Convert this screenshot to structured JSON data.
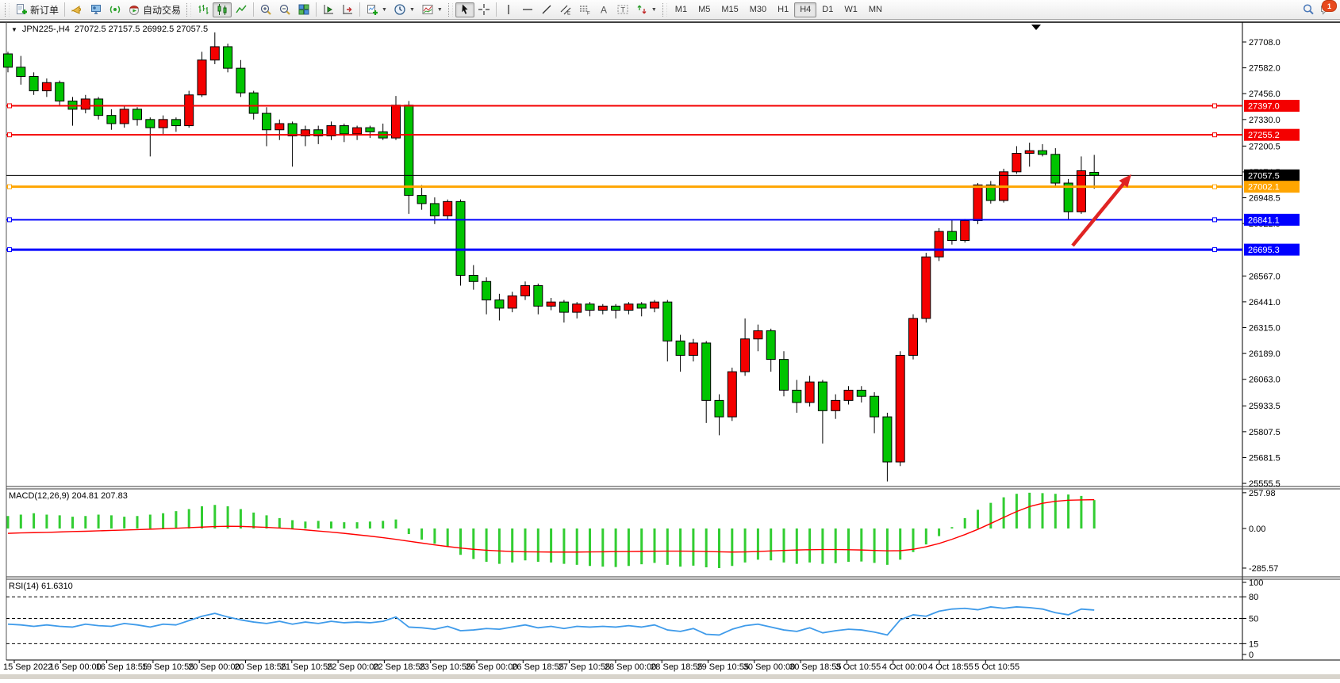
{
  "toolbar": {
    "new_order_label": "新订单",
    "autotrade_label": "自动交易",
    "timeframes": [
      "M1",
      "M5",
      "M15",
      "M30",
      "H1",
      "H4",
      "D1",
      "W1",
      "MN"
    ],
    "selected_timeframe": "H4",
    "notification_badge": "1"
  },
  "chart": {
    "symbol_label": "JPN225-,H4",
    "ohlc_label": "27072.5 27157.5 26992.5 27057.5",
    "price_ticks": [
      27708.0,
      27582.0,
      27456.0,
      27330.0,
      27200.5,
      27074.5,
      26948.5,
      26822.5,
      26567.0,
      26441.0,
      26315.0,
      26189.0,
      26063.0,
      25933.5,
      25807.5,
      25681.5,
      25555.5
    ],
    "hlines": [
      {
        "price": 27397.0,
        "label": "27397.0",
        "color": "#f40000",
        "width": 2
      },
      {
        "price": 27255.2,
        "label": "27255.2",
        "color": "#f40000",
        "width": 2
      },
      {
        "price": 27057.5,
        "label": "27057.5",
        "color": "#000000",
        "width": 1
      },
      {
        "price": 27002.1,
        "label": "27002.1",
        "color": "#ffa500",
        "width": 3
      },
      {
        "price": 26841.1,
        "label": "26841.1",
        "color": "#0000ff",
        "width": 2
      },
      {
        "price": 26695.3,
        "label": "26695.3",
        "color": "#0000ff",
        "width": 3
      }
    ],
    "time_labels": [
      "15 Sep 2022",
      "16 Sep 00:00",
      "16 Sep 18:55",
      "19 Sep 10:55",
      "20 Sep 00:00",
      "20 Sep 18:55",
      "21 Sep 10:55",
      "22 Sep 00:00",
      "22 Sep 18:55",
      "23 Sep 10:55",
      "26 Sep 00:00",
      "26 Sep 18:55",
      "27 Sep 10:55",
      "28 Sep 00:00",
      "28 Sep 18:55",
      "29 Sep 10:55",
      "30 Sep 00:00",
      "30 Sep 18:55",
      "3 Oct 10:55",
      "4 Oct 00:00",
      "4 Oct 18:55",
      "5 Oct 10:55"
    ]
  },
  "macd": {
    "name_label": "MACD(12,26,9)",
    "values_label": "204.81 207.83",
    "axis_ticks": [
      "257.98",
      "0.00",
      "-285.57"
    ]
  },
  "rsi": {
    "name_label": "RSI(14)",
    "value_label": "61.6310",
    "axis_ticks": [
      "100",
      "80",
      "50",
      "15",
      "0"
    ],
    "levels": [
      80,
      50,
      15
    ]
  },
  "chart_data": {
    "type": "candlestick",
    "title": "JPN225-,H4",
    "price_range": {
      "top": 27708.0,
      "bottom": 25555.5
    },
    "bull_color": "#f40000",
    "bear_color": "#00c400",
    "macd_bar_color": "#32cd32",
    "macd_signal_color": "#ff0000",
    "rsi_line_color": "#3f9bea",
    "arrow_color": "#e02423",
    "candles": [
      [
        27650,
        27660,
        27560,
        27585
      ],
      [
        27585,
        27640,
        27500,
        27540
      ],
      [
        27540,
        27560,
        27450,
        27470
      ],
      [
        27470,
        27530,
        27440,
        27510
      ],
      [
        27510,
        27520,
        27400,
        27420
      ],
      [
        27420,
        27440,
        27300,
        27380
      ],
      [
        27380,
        27450,
        27360,
        27430
      ],
      [
        27430,
        27440,
        27330,
        27350
      ],
      [
        27350,
        27380,
        27280,
        27310
      ],
      [
        27310,
        27400,
        27290,
        27380
      ],
      [
        27380,
        27390,
        27300,
        27330
      ],
      [
        27330,
        27340,
        27150,
        27290
      ],
      [
        27290,
        27350,
        27260,
        27330
      ],
      [
        27330,
        27340,
        27270,
        27300
      ],
      [
        27300,
        27470,
        27290,
        27450
      ],
      [
        27450,
        27660,
        27440,
        27620
      ],
      [
        27620,
        27755,
        27600,
        27685
      ],
      [
        27685,
        27700,
        27560,
        27580
      ],
      [
        27580,
        27620,
        27440,
        27460
      ],
      [
        27460,
        27470,
        27330,
        27360
      ],
      [
        27360,
        27390,
        27200,
        27280
      ],
      [
        27280,
        27330,
        27230,
        27310
      ],
      [
        27310,
        27320,
        27100,
        27250
      ],
      [
        27250,
        27300,
        27200,
        27280
      ],
      [
        27280,
        27300,
        27210,
        27250
      ],
      [
        27250,
        27320,
        27230,
        27300
      ],
      [
        27300,
        27310,
        27220,
        27260
      ],
      [
        27260,
        27300,
        27230,
        27290
      ],
      [
        27290,
        27300,
        27240,
        27270
      ],
      [
        27270,
        27310,
        27230,
        27240
      ],
      [
        27240,
        27445,
        27230,
        27400
      ],
      [
        27400,
        27420,
        26870,
        26960
      ],
      [
        26960,
        27010,
        26890,
        26920
      ],
      [
        26920,
        26950,
        26820,
        26860
      ],
      [
        26860,
        26940,
        26840,
        26930
      ],
      [
        26930,
        26940,
        26520,
        26570
      ],
      [
        26570,
        26620,
        26500,
        26540
      ],
      [
        26540,
        26560,
        26380,
        26450
      ],
      [
        26450,
        26480,
        26350,
        26410
      ],
      [
        26410,
        26490,
        26390,
        26470
      ],
      [
        26470,
        26540,
        26450,
        26520
      ],
      [
        26520,
        26530,
        26380,
        26420
      ],
      [
        26420,
        26460,
        26400,
        26440
      ],
      [
        26440,
        26450,
        26340,
        26390
      ],
      [
        26390,
        26440,
        26360,
        26430
      ],
      [
        26430,
        26440,
        26370,
        26400
      ],
      [
        26400,
        26430,
        26380,
        26420
      ],
      [
        26420,
        26430,
        26360,
        26400
      ],
      [
        26400,
        26440,
        26380,
        26430
      ],
      [
        26430,
        26440,
        26370,
        26410
      ],
      [
        26410,
        26450,
        26390,
        26440
      ],
      [
        26440,
        26450,
        26150,
        26250
      ],
      [
        26250,
        26280,
        26100,
        26180
      ],
      [
        26180,
        26260,
        26150,
        26240
      ],
      [
        26240,
        26250,
        25850,
        25960
      ],
      [
        25960,
        25990,
        25790,
        25880
      ],
      [
        25880,
        26120,
        25860,
        26100
      ],
      [
        26100,
        26360,
        26080,
        26260
      ],
      [
        26260,
        26330,
        26200,
        26300
      ],
      [
        26300,
        26310,
        26100,
        26160
      ],
      [
        26160,
        26200,
        25980,
        26010
      ],
      [
        26010,
        26060,
        25900,
        25950
      ],
      [
        25950,
        26080,
        25930,
        26050
      ],
      [
        26050,
        26060,
        25750,
        25910
      ],
      [
        25910,
        25990,
        25870,
        25960
      ],
      [
        25960,
        26030,
        25940,
        26010
      ],
      [
        26010,
        26030,
        25950,
        25980
      ],
      [
        25980,
        26000,
        25800,
        25880
      ],
      [
        25880,
        25900,
        25565,
        25660
      ],
      [
        25660,
        26200,
        25640,
        26180
      ],
      [
        26180,
        26380,
        26160,
        26360
      ],
      [
        26360,
        26680,
        26340,
        26660
      ],
      [
        26660,
        26800,
        26640,
        26784
      ],
      [
        26784,
        26840,
        26720,
        26740
      ],
      [
        26740,
        26845,
        26730,
        26837
      ],
      [
        26837,
        27020,
        26820,
        27011
      ],
      [
        27011,
        27030,
        26920,
        26935
      ],
      [
        26935,
        27090,
        26925,
        27075
      ],
      [
        27075,
        27200,
        27065,
        27165
      ],
      [
        27165,
        27217,
        27100,
        27178
      ],
      [
        27178,
        27210,
        27150,
        27160
      ],
      [
        27160,
        27190,
        27000,
        27020
      ],
      [
        27020,
        27040,
        26840,
        26880
      ],
      [
        26880,
        27150,
        26870,
        27080
      ],
      [
        27072.5,
        27157.5,
        26992.5,
        27057.5
      ]
    ],
    "macd_histogram": [
      90,
      100,
      110,
      100,
      95,
      85,
      90,
      100,
      95,
      85,
      90,
      100,
      110,
      125,
      140,
      160,
      170,
      160,
      140,
      115,
      95,
      75,
      60,
      50,
      55,
      50,
      45,
      45,
      50,
      55,
      65,
      -40,
      -80,
      -110,
      -130,
      -190,
      -220,
      -240,
      -255,
      -245,
      -230,
      -240,
      -245,
      -255,
      -262,
      -270,
      -275,
      -278,
      -270,
      -258,
      -248,
      -262,
      -275,
      -268,
      -280,
      -285.57,
      -270,
      -245,
      -225,
      -230,
      -245,
      -255,
      -245,
      -255,
      -250,
      -240,
      -238,
      -248,
      -262,
      -225,
      -170,
      -115,
      -55,
      10,
      75,
      135,
      185,
      225,
      250,
      257.98,
      255,
      250,
      245,
      235,
      204.81
    ],
    "macd_signal": [
      -35,
      -32,
      -30,
      -28,
      -25,
      -22,
      -20,
      -17,
      -14,
      -11,
      -8,
      -5,
      -2,
      2,
      6,
      10,
      14,
      16,
      15,
      12,
      8,
      3,
      -3,
      -10,
      -18,
      -26,
      -35,
      -45,
      -55,
      -66,
      -78,
      -92,
      -105,
      -118,
      -130,
      -141,
      -150,
      -157,
      -162,
      -166,
      -168,
      -169,
      -170,
      -170,
      -170,
      -169,
      -168,
      -167,
      -166,
      -165,
      -164,
      -163,
      -163,
      -164,
      -166,
      -168,
      -170,
      -169,
      -166,
      -162,
      -158,
      -155,
      -153,
      -152,
      -152,
      -153,
      -155,
      -158,
      -161,
      -160,
      -150,
      -132,
      -108,
      -78,
      -44,
      -6,
      36,
      80,
      122,
      158,
      182,
      196,
      204,
      206,
      207.83
    ],
    "rsi_values": [
      42,
      41,
      39,
      41,
      39,
      38,
      42,
      40,
      39,
      43,
      41,
      38,
      42,
      41,
      47,
      53,
      57,
      52,
      48,
      45,
      43,
      46,
      42,
      45,
      43,
      46,
      44,
      45,
      44,
      46,
      52,
      38,
      37,
      35,
      39,
      33,
      34,
      36,
      35,
      38,
      41,
      37,
      39,
      36,
      39,
      38,
      39,
      38,
      40,
      38,
      41,
      34,
      32,
      36,
      28,
      27,
      35,
      40,
      42,
      38,
      34,
      32,
      37,
      30,
      33,
      35,
      34,
      31,
      27,
      48,
      55,
      53,
      60,
      63,
      64,
      62,
      66,
      64,
      66,
      65,
      63,
      58,
      55,
      63,
      61.63
    ]
  }
}
